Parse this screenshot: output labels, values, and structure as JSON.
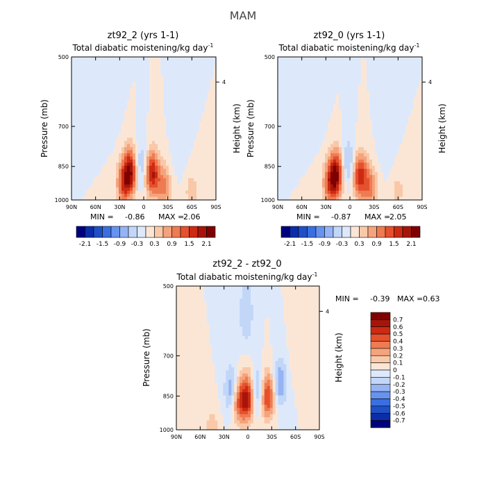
{
  "figure": {
    "super_title": "MAM",
    "ylabel": "Pressure (mb)",
    "ylabel_right": "Height (km)",
    "xlabel_ticks": [
      "90N",
      "60N",
      "30N",
      "0",
      "30S",
      "60S",
      "90S"
    ],
    "y_ticks": [
      "500",
      "700",
      "850",
      "1000"
    ],
    "y_tick_values": [
      500,
      700,
      850,
      1000
    ],
    "right_tick": "4",
    "right_tick_km": 4
  },
  "chart_data": [
    {
      "type": "heatmap",
      "title": "zt92_2 (yrs 1-1)",
      "subtitle": "Total diabatic moistening/kg day",
      "subtitle_exp": "-1",
      "xlim": [
        90,
        -90
      ],
      "ylim": [
        1000,
        500
      ],
      "min_label": "MIN =",
      "min": "-0.86",
      "max_label": "MAX =",
      "max": "2.06",
      "colorbar_labels": [
        "-2.1",
        "-1.5",
        "-0.9",
        "-0.3",
        "0.3",
        "0.9",
        "1.5",
        "2.1"
      ],
      "colorbar_colors": [
        "#00007f",
        "#0b2ea8",
        "#1f50c8",
        "#3a6fe0",
        "#6693f0",
        "#96b4f4",
        "#c2d6f8",
        "#dde9fb",
        "#fbe6d6",
        "#f9c8a8",
        "#f5a37c",
        "#ee7b52",
        "#e5502d",
        "#cc2a12",
        "#a7150a",
        "#7f0000"
      ],
      "features": [
        {
          "lat": 17,
          "p": 870,
          "v": 2.0
        },
        {
          "lat": 25,
          "p": 930,
          "v": 1.2
        },
        {
          "lat": -10,
          "p": 880,
          "v": 1.9
        },
        {
          "lat": -25,
          "p": 940,
          "v": 1.0
        },
        {
          "lat": 3,
          "p": 850,
          "v": -0.8
        },
        {
          "lat": -45,
          "p": 780,
          "v": -0.3
        },
        {
          "lat": 40,
          "p": 620,
          "v": -0.3
        },
        {
          "lat": -60,
          "p": 960,
          "v": 0.5
        }
      ]
    },
    {
      "type": "heatmap",
      "title": "zt92_0 (yrs 1-1)",
      "subtitle": "Total diabatic moistening/kg day",
      "subtitle_exp": "-1",
      "xlim": [
        90,
        -90
      ],
      "ylim": [
        1000,
        500
      ],
      "min_label": "MIN =",
      "min": "-0.87",
      "max_label": "MAX =",
      "max": "2.05",
      "colorbar_labels": [
        "-2.1",
        "-1.5",
        "-0.9",
        "-0.3",
        "0.3",
        "0.9",
        "1.5",
        "2.1"
      ],
      "colorbar_colors": [
        "#00007f",
        "#0b2ea8",
        "#1f50c8",
        "#3a6fe0",
        "#6693f0",
        "#96b4f4",
        "#c2d6f8",
        "#dde9fb",
        "#fbe6d6",
        "#f9c8a8",
        "#f5a37c",
        "#ee7b52",
        "#e5502d",
        "#cc2a12",
        "#a7150a",
        "#7f0000"
      ],
      "features": [
        {
          "lat": 17,
          "p": 880,
          "v": 2.0
        },
        {
          "lat": 25,
          "p": 930,
          "v": 1.2
        },
        {
          "lat": -12,
          "p": 890,
          "v": 1.7
        },
        {
          "lat": -25,
          "p": 940,
          "v": 1.0
        },
        {
          "lat": 2,
          "p": 840,
          "v": -0.8
        },
        {
          "lat": -45,
          "p": 760,
          "v": -0.3
        },
        {
          "lat": 40,
          "p": 620,
          "v": -0.3
        },
        {
          "lat": -60,
          "p": 960,
          "v": 0.4
        }
      ]
    },
    {
      "type": "heatmap",
      "title": "zt92_2 - zt92_0",
      "subtitle": "Total diabatic moistening/kg day",
      "subtitle_exp": "-1",
      "xlim": [
        90,
        -90
      ],
      "ylim": [
        1000,
        500
      ],
      "min_label": "MIN =",
      "min": "-0.39",
      "max_label": "MAX =",
      "max": "0.63",
      "colorbar_labels": [
        "0.7",
        "0.6",
        "0.5",
        "0.4",
        "0.3",
        "0.2",
        "0.1",
        "0",
        "-0.1",
        "-0.2",
        "-0.3",
        "-0.4",
        "-0.5",
        "-0.6",
        "-0.7"
      ],
      "colorbar_colors": [
        "#7f0000",
        "#a7150a",
        "#cc2a12",
        "#e5502d",
        "#ee7b52",
        "#f5a37c",
        "#f9c8a8",
        "#fbe6d6",
        "#dde9fb",
        "#c2d6f8",
        "#96b4f4",
        "#6693f0",
        "#3a6fe0",
        "#1f50c8",
        "#0b2ea8",
        "#00007f"
      ],
      "features": [
        {
          "lat": 0,
          "p": 860,
          "v": 0.6
        },
        {
          "lat": -25,
          "p": 850,
          "v": 0.55
        },
        {
          "lat": 12,
          "p": 870,
          "v": 0.45
        },
        {
          "lat": 20,
          "p": 830,
          "v": -0.35
        },
        {
          "lat": -12,
          "p": 830,
          "v": -0.3
        },
        {
          "lat": -40,
          "p": 800,
          "v": -0.3
        },
        {
          "lat": 2,
          "p": 570,
          "v": -0.2
        },
        {
          "lat": -60,
          "p": 700,
          "v": 0.05
        },
        {
          "lat": 45,
          "p": 980,
          "v": 0.15
        }
      ]
    }
  ]
}
